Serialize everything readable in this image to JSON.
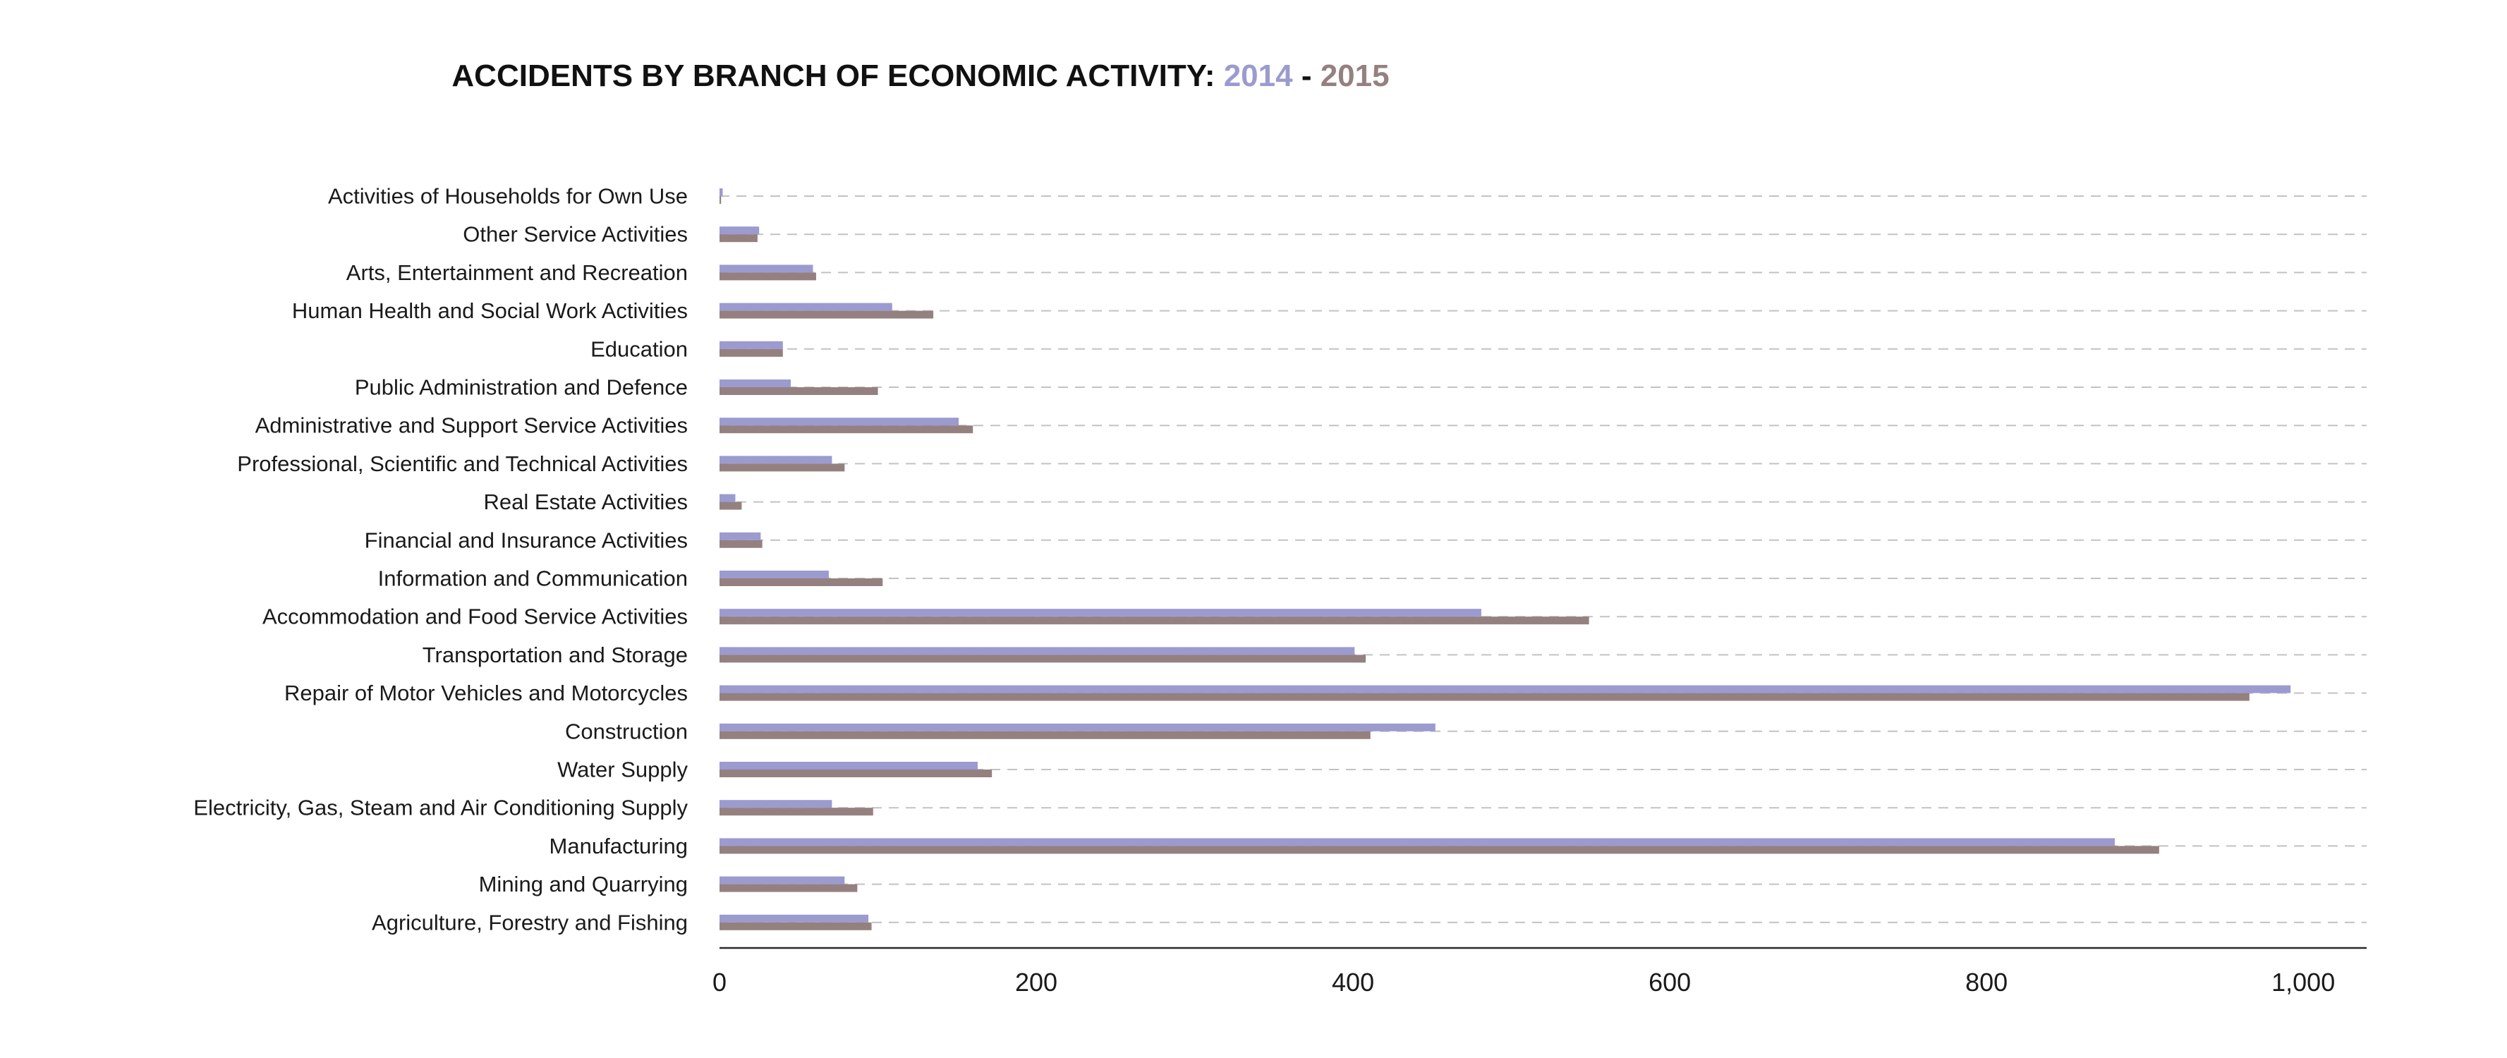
{
  "chart_data": {
    "type": "bar",
    "orientation": "horizontal",
    "title": {
      "prefix": "ACCIDENTS BY BRANCH OF ECONOMIC ACTIVITY: ",
      "year1": "2014",
      "separator": " - ",
      "year2": "2015"
    },
    "xlabel": "",
    "ylabel": "",
    "xlim": [
      0,
      1040
    ],
    "xticks": [
      0,
      200,
      400,
      600,
      800,
      1000
    ],
    "xtick_labels": [
      "0",
      "200",
      "400",
      "600",
      "800",
      "1,000"
    ],
    "grid": "horizontal dashed",
    "legend": "in title",
    "categories": [
      "Activities of Households for Own Use",
      "Other Service Activities",
      "Arts, Entertainment and Recreation",
      "Human Health and Social Work Activities",
      "Education",
      "Public Administration and Defence",
      "Administrative and Support Service Activities",
      "Professional, Scientific and Technical Activities",
      "Real Estate Activities",
      "Financial and Insurance Activities",
      "Information and Communication",
      "Accommodation and Food Service Activities",
      "Transportation and Storage",
      "Repair of Motor Vehicles and Motorcycles",
      "Construction",
      "Water Supply",
      "Electricity, Gas, Steam and Air Conditioning Supply",
      "Manufacturing",
      "Mining and Quarrying",
      "Agriculture, Forestry and Fishing"
    ],
    "series": [
      {
        "name": "2014",
        "color": "#9b9bd0",
        "values": [
          2,
          25,
          59,
          109,
          40,
          45,
          151,
          71,
          10,
          26,
          69,
          481,
          401,
          992,
          452,
          163,
          71,
          881,
          79,
          94
        ]
      },
      {
        "name": "2015",
        "color": "#958080",
        "values": [
          1,
          24,
          61,
          135,
          40,
          100,
          160,
          79,
          14,
          27,
          103,
          549,
          408,
          966,
          411,
          172,
          97,
          909,
          87,
          96
        ]
      }
    ]
  }
}
